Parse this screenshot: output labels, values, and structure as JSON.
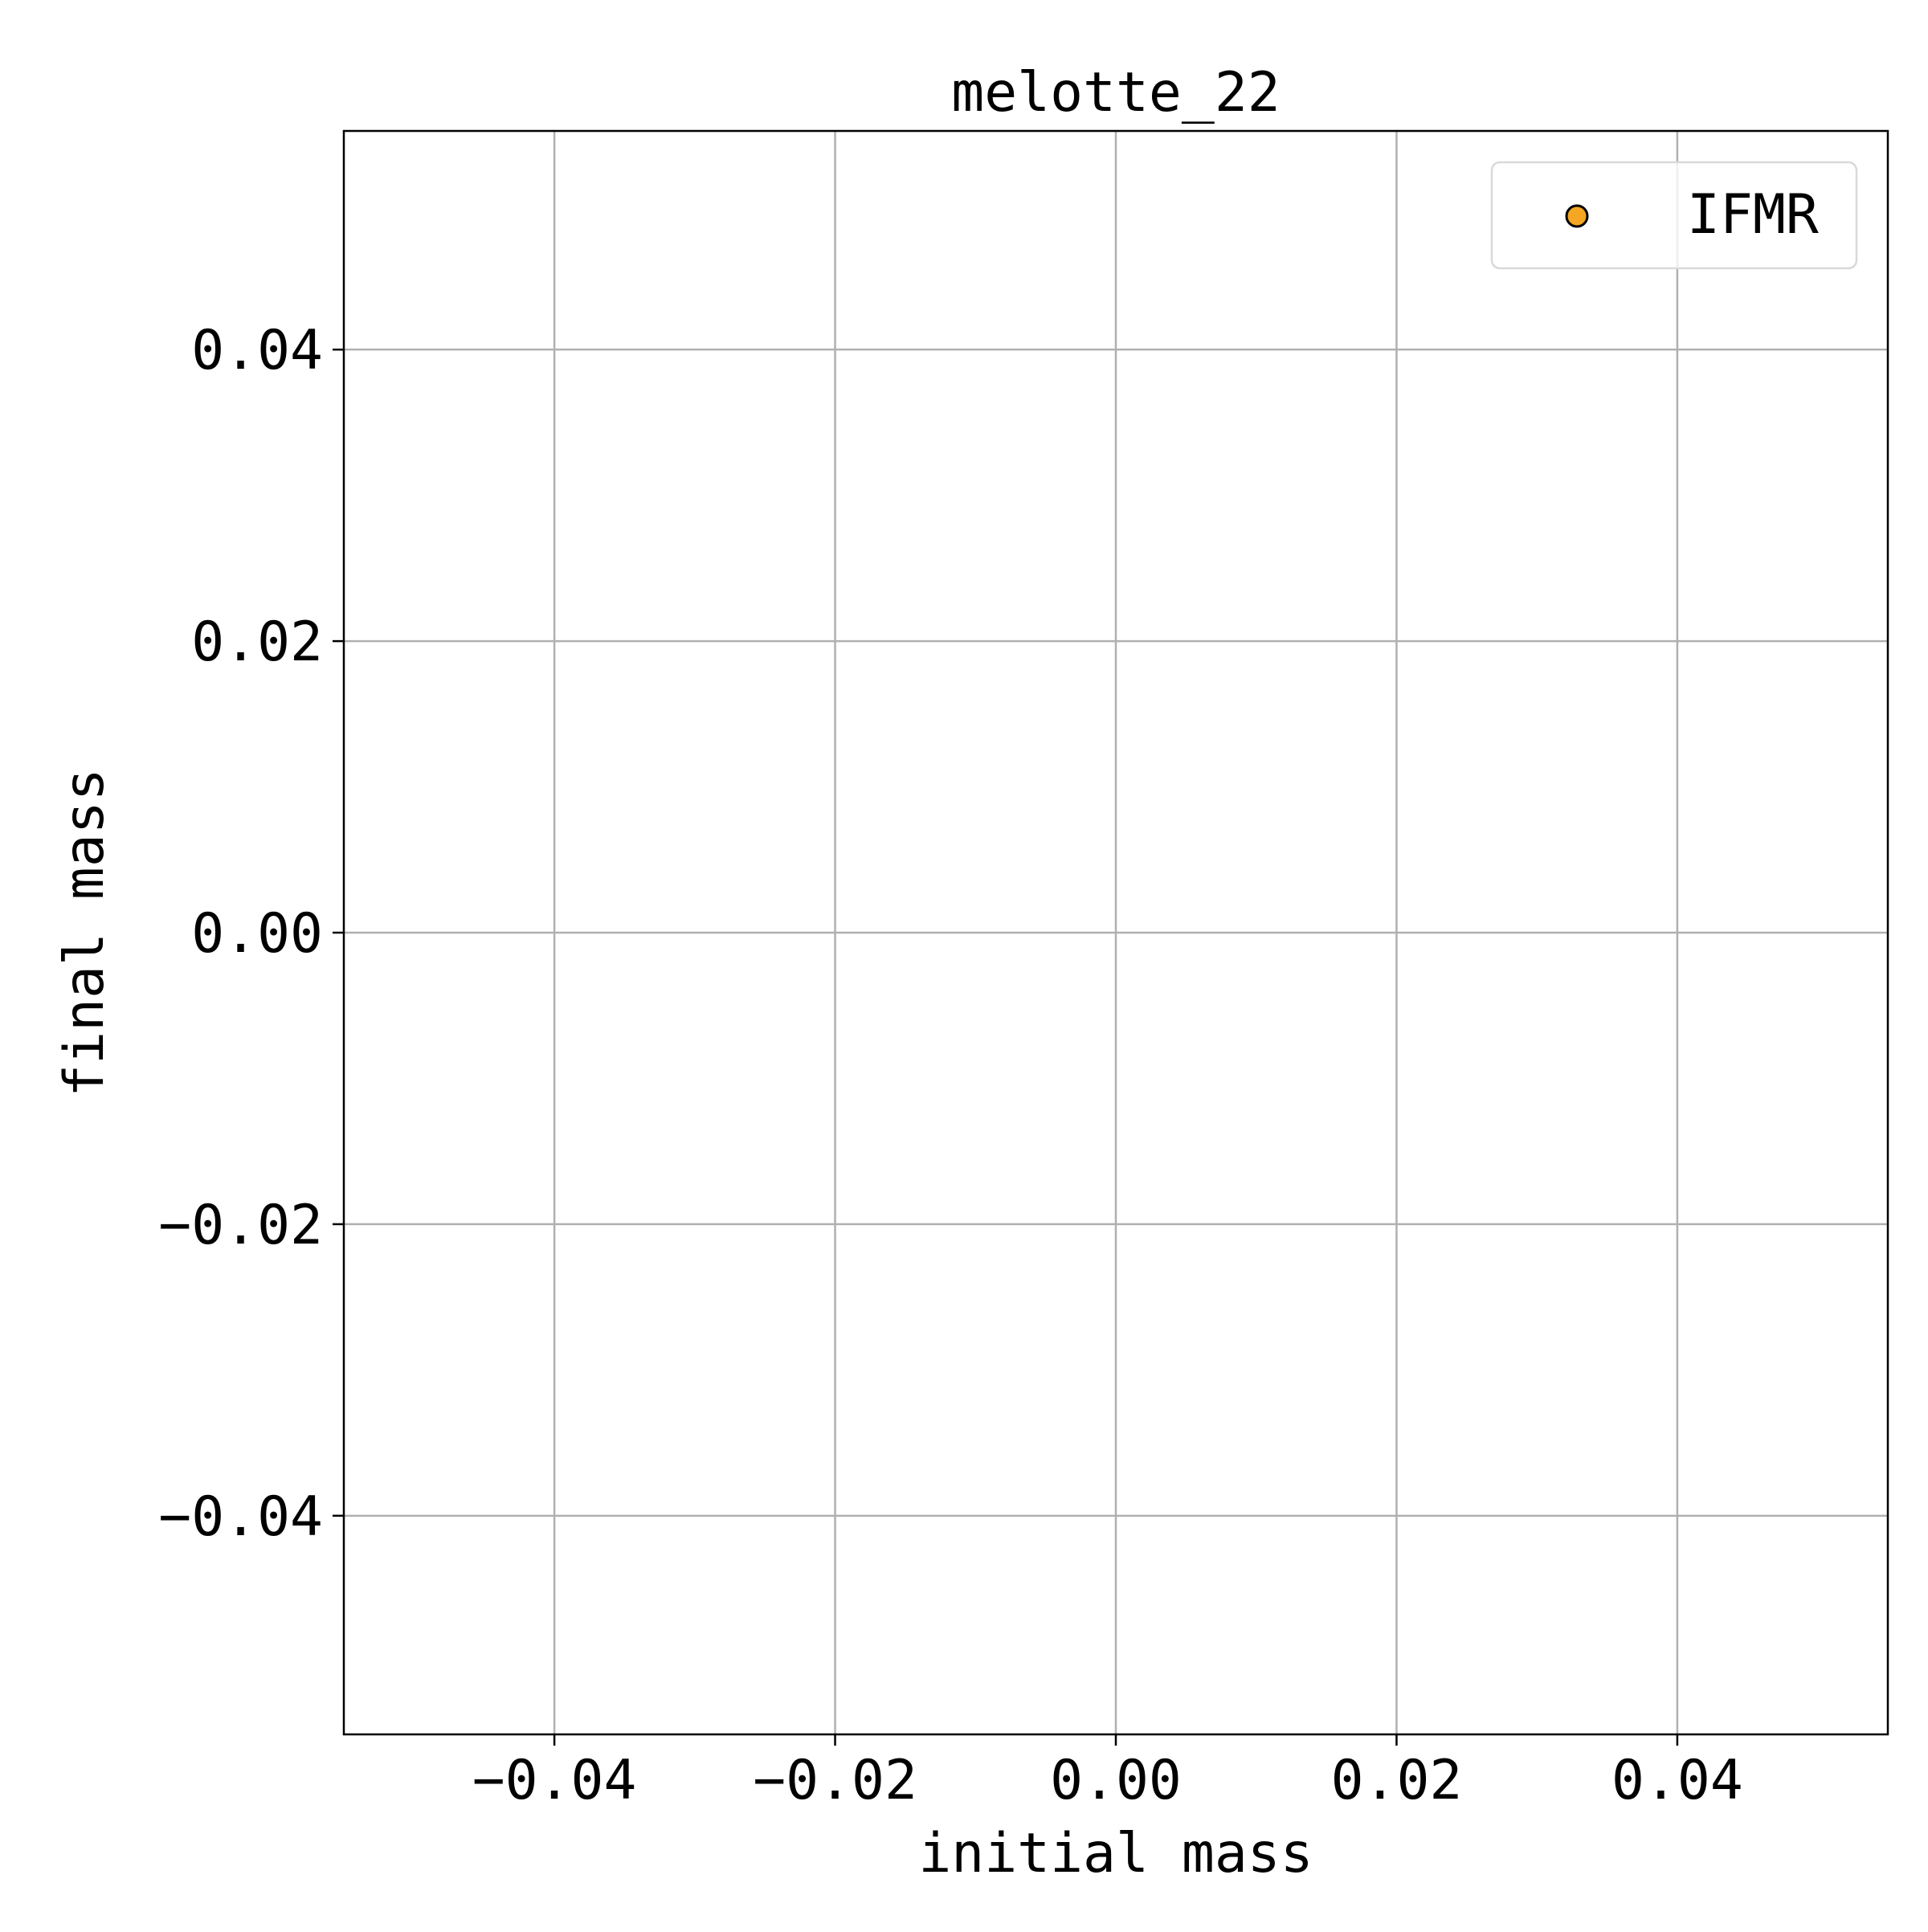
{
  "chart_data": {
    "type": "scatter",
    "title": "melotte_22",
    "xlabel": "initial mass",
    "ylabel": "final mass",
    "xlim": [
      -0.055,
      0.055
    ],
    "ylim": [
      -0.055,
      0.055
    ],
    "x_ticks": [
      -0.04,
      -0.02,
      0.0,
      0.02,
      0.04
    ],
    "y_ticks": [
      -0.04,
      -0.02,
      0.0,
      0.02,
      0.04
    ],
    "x_tick_labels": [
      "−0.04",
      "−0.02",
      "0.00",
      "0.02",
      "0.04"
    ],
    "y_tick_labels": [
      "−0.04",
      "−0.02",
      "0.00",
      "0.02",
      "0.04"
    ],
    "grid": true,
    "legend_placement": "top-right",
    "series": [
      {
        "name": "IFMR",
        "marker": "circle",
        "color": "#f5a623",
        "edge_color": "#000000",
        "x": [],
        "y": []
      }
    ]
  },
  "colors": {
    "grid": "#b0b0b0",
    "axes": "#000000",
    "background": "#ffffff",
    "legend_border": "#d9d9d9"
  }
}
